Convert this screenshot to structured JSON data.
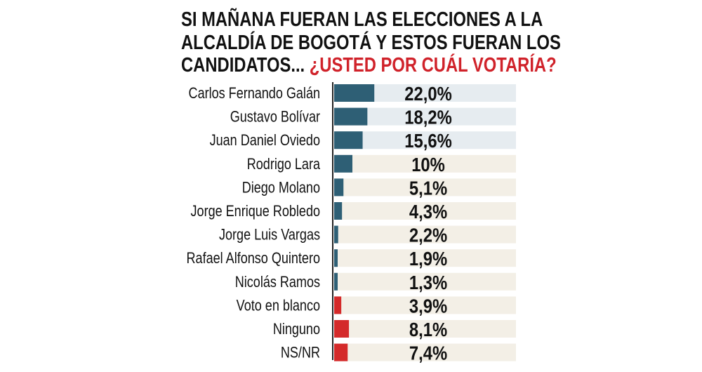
{
  "chart_data": {
    "type": "bar",
    "orientation": "horizontal",
    "title": "SI MAÑANA FUERAN LAS ELECCIONES A LA ALCALDÍA DE BOGOTÁ Y ESTOS FUERAN LOS CANDIDATOS...",
    "title_lines": [
      "SI MAÑANA FUERAN LAS ELECCIONES A LA",
      "ALCALDÍA DE BOGOTÁ Y ESTOS FUERAN LOS",
      "CANDIDATOS... "
    ],
    "title_highlight": "¿USTED POR CUÁL VOTARÍA?",
    "categories": [
      "Carlos Fernando Galán",
      "Gustavo Bolívar",
      "Juan Daniel Oviedo",
      "Rodrigo Lara",
      "Diego Molano",
      "Jorge Enrique Robledo",
      "Jorge Luis Vargas",
      "Rafael Alfonso Quintero",
      "Nicolás Ramos",
      "Voto en blanco",
      "Ninguno",
      "NS/NR"
    ],
    "values": [
      22.0,
      18.2,
      15.6,
      10,
      5.1,
      4.3,
      2.2,
      1.9,
      1.3,
      3.9,
      8.1,
      7.4
    ],
    "value_labels": [
      "22,0%",
      "18,2%",
      "15,6%",
      "10%",
      "5,1%",
      "4,3%",
      "2,2%",
      "1,9%",
      "1,3%",
      "3,9%",
      "8,1%",
      "7,4%"
    ],
    "bar_groups": [
      "candidate",
      "candidate",
      "candidate",
      "candidate",
      "candidate",
      "candidate",
      "candidate",
      "candidate",
      "candidate",
      "other",
      "other",
      "other"
    ],
    "track_highlight_top": 3,
    "xlim": [
      0,
      100
    ],
    "grid": false,
    "colors": {
      "candidate": "#2e5f75",
      "other": "#d42a2a",
      "track_top": "#e6ecf0",
      "track": "#f3efe6",
      "highlight_text": "#d0222a"
    }
  }
}
